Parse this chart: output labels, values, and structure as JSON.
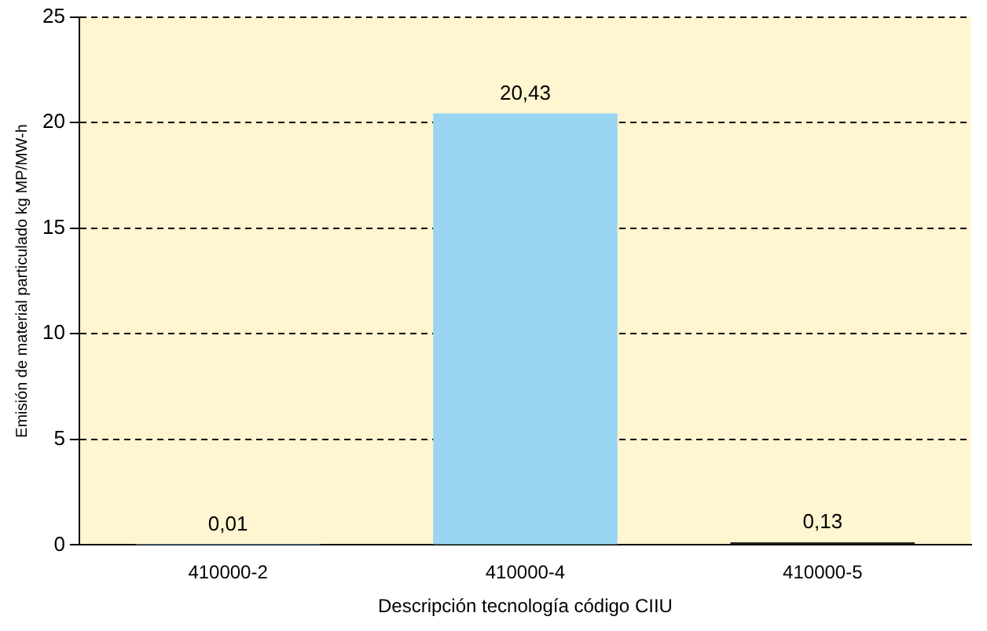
{
  "chart_data": {
    "type": "bar",
    "xlabel": "Descripción tecnología código CIIU",
    "ylabel": "Emisión de material particulado kg MP/MW-h",
    "categories": [
      "410000-2",
      "410000-4",
      "410000-5"
    ],
    "values": [
      0.01,
      20.43,
      0.13
    ],
    "value_labels": [
      "0,01",
      "20,43",
      "0,13"
    ],
    "colors": [
      "#99d5f1",
      "#99d5f1",
      "#222222"
    ],
    "ylim": [
      0,
      25
    ],
    "yticks": [
      0,
      5,
      10,
      15,
      20,
      25
    ],
    "grid": "y",
    "legend": false
  }
}
